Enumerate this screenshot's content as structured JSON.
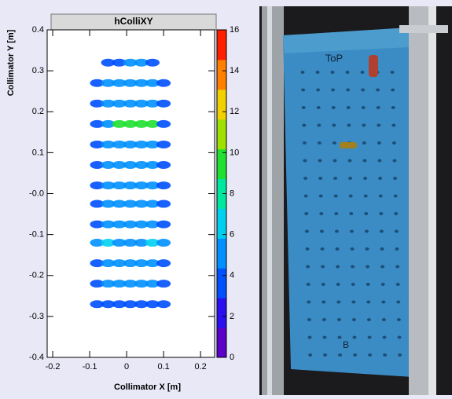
{
  "chart_data": {
    "type": "heatmap",
    "title": "hColliXY",
    "x_label": "Collimator X [m]",
    "y_label": "Collimator Y [m]",
    "x": [
      -0.08,
      -0.05,
      -0.02,
      0.01,
      0.04,
      0.07,
      0.1
    ],
    "y": [
      0.32,
      0.27,
      0.22,
      0.17,
      0.12,
      0.07,
      0.02,
      -0.025,
      -0.075,
      -0.12,
      -0.17,
      -0.22,
      -0.27
    ],
    "z": [
      [
        null,
        3,
        3,
        4,
        4,
        3,
        null
      ],
      [
        3,
        4,
        4,
        4,
        4,
        4,
        3
      ],
      [
        3,
        4,
        4,
        4,
        4,
        4,
        3
      ],
      [
        3,
        4,
        9,
        10,
        10,
        9,
        3
      ],
      [
        3,
        4,
        4,
        4,
        4,
        4,
        3
      ],
      [
        3,
        4,
        4,
        4,
        4,
        4,
        3
      ],
      [
        3,
        4,
        5,
        5,
        5,
        4,
        3
      ],
      [
        3,
        4,
        4,
        4,
        4,
        4,
        3
      ],
      [
        3,
        4,
        4,
        4,
        4,
        4,
        3
      ],
      [
        5,
        6,
        4,
        4,
        4,
        6,
        5
      ],
      [
        3,
        4,
        4,
        4,
        4,
        4,
        3
      ],
      [
        3,
        4,
        4,
        4,
        4,
        4,
        3
      ],
      [
        3,
        3,
        3,
        3,
        3,
        3,
        3
      ]
    ],
    "xlim": [
      -0.215,
      0.238
    ],
    "ylim": [
      -0.4,
      0.4
    ],
    "zlim": [
      0,
      16
    ],
    "xticks": [
      -0.2,
      -0.1,
      0,
      0.1,
      0.2
    ],
    "yticks": [
      0.4,
      0.3,
      0.2,
      0.1,
      {
        "value": 0,
        "label": "-0.0"
      },
      -0.1,
      -0.2,
      -0.3,
      -0.4
    ],
    "zticks": [
      0,
      2,
      4,
      6,
      8,
      10,
      12,
      14,
      16
    ],
    "palette": [
      "#5a00c8",
      "#2a10f0",
      "#0050ff",
      "#0090ff",
      "#00d0f0",
      "#00e8a0",
      "#20e030",
      "#a0e000",
      "#f0d000",
      "#ff8000",
      "#ff2000"
    ]
  },
  "photo": {
    "labels": [
      "ToP",
      "B"
    ]
  }
}
